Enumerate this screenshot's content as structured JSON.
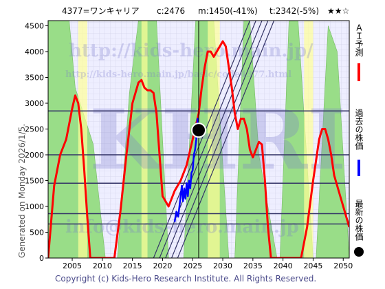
{
  "header": {
    "code": "4377=ワンキャリア",
    "current": "c:2476",
    "min": "m:1450(-41%)",
    "target": "t:2342(-5%)",
    "stars": "★★☆"
  },
  "side_label": "Generated on Monday 2026/1/5.",
  "footer": "Copyright (c) Kids-Hero Research Institute. All Rights Reserved.",
  "watermarks": {
    "url": "http://kids-hero.main.jp/",
    "code_url": "http://kids-hero.main.jp/basic/code4377.html",
    "email": "info@kids-hero.main.jp",
    "logo": "KHRI"
  },
  "legend": [
    {
      "label": "ＡＩ予測",
      "color": "#ff0000",
      "icon": "red-line"
    },
    {
      "label": "過去の株価",
      "color": "#0000ff",
      "icon": "blue-line"
    },
    {
      "label": "最新の株価",
      "color": "#000000",
      "icon": "black-dot"
    }
  ],
  "colors": {
    "plot_bg": "#eeeeff",
    "green_band": "#99dd88",
    "yellow_band": "#ffff99",
    "ai_line": "#ff0000",
    "past_line": "#0000ff",
    "hline": "#333366",
    "trend": "#333366"
  },
  "chart_data": {
    "type": "line",
    "xlim": [
      2001,
      2051
    ],
    "ylim": [
      0,
      4600
    ],
    "x_ticks": [
      2005,
      2010,
      2015,
      2020,
      2025,
      2030,
      2035,
      2040,
      2045,
      2050
    ],
    "y_ticks": [
      0,
      500,
      1000,
      1500,
      2000,
      2500,
      3000,
      3500,
      4000,
      4500
    ],
    "grid": true,
    "current_point": {
      "x": 2026.0,
      "y": 2476
    },
    "current_vline": 2026.0,
    "hlines": [
      2850,
      2000,
      1450,
      860,
      660
    ],
    "trend_lines": [
      {
        "x": [
          2018.5,
          2034.5
        ],
        "y": [
          0,
          4600
        ]
      },
      {
        "x": [
          2019.5,
          2035.5
        ],
        "y": [
          0,
          4600
        ]
      },
      {
        "x": [
          2020.5,
          2036.5
        ],
        "y": [
          0,
          4600
        ]
      },
      {
        "x": [
          2021.5,
          2037.5
        ],
        "y": [
          0,
          4600
        ]
      },
      {
        "x": [
          2022.5,
          2038.5
        ],
        "y": [
          0,
          4600
        ]
      }
    ],
    "green_bands": [
      {
        "x": [
          2001,
          2004.5,
          2005.5,
          2008.5,
          2010.5
        ],
        "y": [
          4600,
          4600,
          3300,
          2200,
          0
        ]
      },
      {
        "x": [
          2012.5,
          2014.5,
          2016.0,
          2019.0,
          2021.0
        ],
        "y": [
          0,
          3200,
          4600,
          4600,
          0
        ]
      },
      {
        "x": [
          2023.5,
          2025.5,
          2026.5,
          2028.5,
          2031.0
        ],
        "y": [
          0,
          4600,
          4600,
          4600,
          0
        ]
      },
      {
        "x": [
          2032.0,
          2033.5,
          2034.5,
          2036.0,
          2039.0
        ],
        "y": [
          0,
          4600,
          4600,
          2000,
          0
        ]
      },
      {
        "x": [
          2039.5,
          2041.0,
          2042.5,
          2045.0
        ],
        "y": [
          0,
          4600,
          4600,
          0
        ]
      },
      {
        "x": [
          2045.5,
          2047.5,
          2049.0,
          2051.0
        ],
        "y": [
          0,
          4500,
          4000,
          0
        ]
      }
    ],
    "yellow_bands": [
      {
        "x": [
          2006.0,
          2007.5
        ],
        "y": [
          4600,
          4600
        ]
      },
      {
        "x": [
          2016.5,
          2017.5
        ],
        "y": [
          4600,
          4600
        ]
      },
      {
        "x": [
          2027.5,
          2029.5
        ],
        "y": [
          4600,
          4600
        ]
      },
      {
        "x": [
          2043.5,
          2045.0
        ],
        "y": [
          4600,
          4600
        ]
      }
    ],
    "series": [
      {
        "name": "ＡＩ予測",
        "color": "#ff0000",
        "x": [
          2001.0,
          2002.0,
          2003.0,
          2004.0,
          2005.0,
          2005.5,
          2006.0,
          2006.5,
          2007.0,
          2007.5,
          2008.0,
          2009.0,
          2010.0,
          2011.0,
          2012.0,
          2013.0,
          2014.0,
          2015.0,
          2016.0,
          2016.5,
          2017.0,
          2017.5,
          2018.0,
          2018.5,
          2019.0,
          2019.5,
          2020.0,
          2021.0,
          2022.0,
          2023.0,
          2024.0,
          2025.0,
          2026.0,
          2026.5,
          2027.0,
          2027.5,
          2028.0,
          2028.5,
          2029.0,
          2029.5,
          2030.0,
          2030.5,
          2031.0,
          2031.5,
          2032.0,
          2032.5,
          2033.0,
          2033.5,
          2034.0,
          2034.5,
          2035.0,
          2035.5,
          2036.0,
          2036.5,
          2037.0,
          2037.5,
          2038.0,
          2038.5,
          2039.0,
          2039.5,
          2040.0,
          2041.0,
          2042.0,
          2043.0,
          2044.0,
          2045.0,
          2046.0,
          2046.5,
          2047.0,
          2047.5,
          2048.0,
          2048.5,
          2049.0,
          2050.0,
          2051.0
        ],
        "y": [
          0,
          1400,
          2000,
          2300,
          2900,
          3150,
          3000,
          2500,
          1700,
          800,
          0,
          0,
          0,
          0,
          0,
          900,
          2000,
          3000,
          3400,
          3450,
          3300,
          3250,
          3250,
          3200,
          2800,
          2000,
          1200,
          1000,
          1300,
          1500,
          1800,
          2300,
          2800,
          3300,
          3700,
          4000,
          4000,
          3900,
          4000,
          4100,
          4200,
          4100,
          3700,
          3300,
          2800,
          2500,
          2700,
          2700,
          2500,
          2100,
          1950,
          2100,
          2250,
          2200,
          1500,
          600,
          0,
          0,
          0,
          0,
          0,
          0,
          0,
          0,
          600,
          1500,
          2300,
          2500,
          2500,
          2300,
          2000,
          1600,
          1400,
          1000,
          600
        ]
      },
      {
        "name": "過去の株価",
        "color": "#0000ff",
        "x": [
          2022.0,
          2022.3,
          2022.6,
          2022.9,
          2023.2,
          2023.4,
          2023.6,
          2023.8,
          2024.0,
          2024.2,
          2024.4,
          2024.6,
          2024.8,
          2025.0,
          2025.2,
          2025.4,
          2025.6,
          2025.8,
          2026.0
        ],
        "y": [
          700,
          900,
          800,
          1100,
          1400,
          1100,
          1350,
          1150,
          1450,
          1200,
          1500,
          1350,
          1650,
          1700,
          2000,
          2100,
          2300,
          2700,
          2476
        ]
      }
    ]
  }
}
